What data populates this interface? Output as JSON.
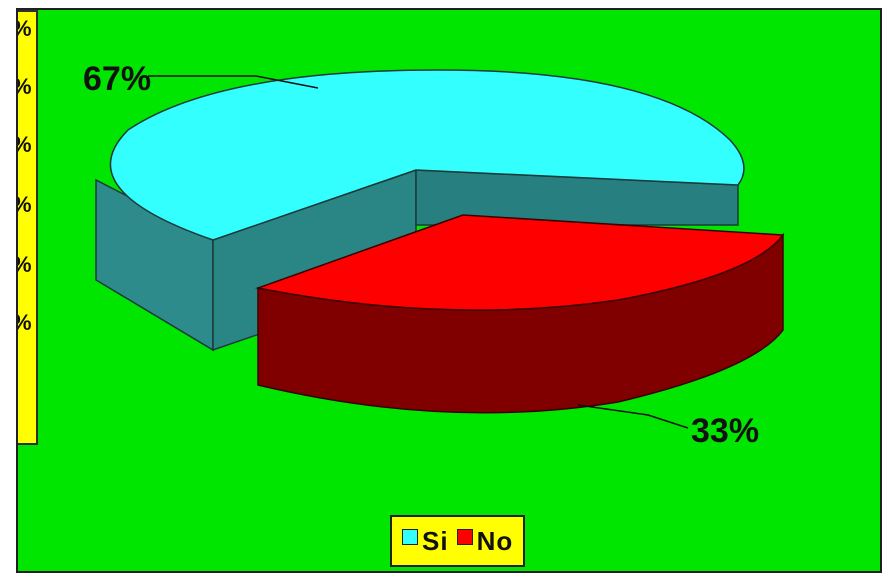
{
  "chart_data": {
    "type": "pie",
    "title": "",
    "categories": [
      "Si",
      "No"
    ],
    "values": [
      67,
      33
    ],
    "data_labels": [
      "67%",
      "33%"
    ],
    "colors": [
      "#33ffff",
      "#ff0000"
    ],
    "side_colors": [
      "#2e8b8b",
      "#800000"
    ],
    "background": "#00e600",
    "legend": {
      "placement": "bottom",
      "background": "#ffff00",
      "entries": [
        "Si",
        "No"
      ]
    },
    "exploded_slice": "No",
    "three_d": true
  },
  "side_panel": {
    "ticks": [
      "%",
      "%",
      "%",
      "%",
      "%",
      "%"
    ]
  }
}
